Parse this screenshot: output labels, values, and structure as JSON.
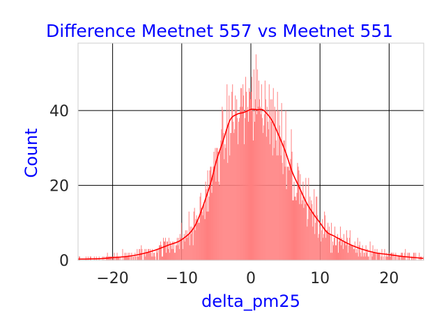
{
  "colors": {
    "title": "#0000ff",
    "axis_label": "#0000ff",
    "bars": "#ff7f7f",
    "kde": "#ff0000",
    "grid": "#000000",
    "frame": "#cccccc"
  },
  "chart_data": {
    "type": "bar",
    "subtype": "histogram_with_kde",
    "title": "Difference Meetnet 557 vs Meetnet 551",
    "xlabel": "delta_pm25",
    "ylabel": "Count",
    "xlim": [
      -25,
      25
    ],
    "ylim": [
      0,
      58
    ],
    "xticks": [
      -20,
      -10,
      0,
      10,
      20
    ],
    "yticks": [
      0,
      20,
      40
    ],
    "xtick_labels": [
      "−20",
      "−10",
      "0",
      "10",
      "20"
    ],
    "ytick_labels": [
      "0",
      "20",
      "40"
    ],
    "grid": true,
    "legend": "none",
    "bin_width": 0.1,
    "kde": {
      "x": [
        -25,
        -22,
        -20,
        -18,
        -16,
        -14,
        -12,
        -10,
        -8,
        -6,
        -5,
        -4,
        -3,
        -2,
        -1,
        0,
        0.5,
        1,
        1.5,
        2,
        3,
        4,
        5,
        6,
        7,
        8,
        9,
        10,
        11,
        12,
        14,
        16,
        18,
        20,
        22,
        25
      ],
      "y": [
        0.3,
        0.4,
        0.7,
        1.0,
        1.6,
        2.6,
        4.0,
        5.5,
        9.5,
        19.5,
        26.5,
        32,
        37.5,
        39,
        39.5,
        40.3,
        40.3,
        40.2,
        40.3,
        39.8,
        37.5,
        33.5,
        29,
        23.5,
        19.5,
        15.5,
        12.5,
        10,
        7.5,
        6.5,
        4.5,
        3.0,
        2.0,
        1.5,
        1.0,
        0.5
      ]
    },
    "highlight_bins": {
      "x": [
        -3.2,
        -1.5,
        -1.2,
        -0.7,
        -0.3,
        0.1,
        0.4,
        0.7,
        1.1,
        1.5,
        2.0,
        2.6,
        3.2,
        3.8,
        4.4,
        5.0,
        5.8
      ],
      "y": [
        44,
        46,
        47,
        45,
        46,
        49,
        51,
        55,
        48,
        47,
        48,
        47,
        46,
        45,
        42,
        40,
        35
      ]
    }
  }
}
